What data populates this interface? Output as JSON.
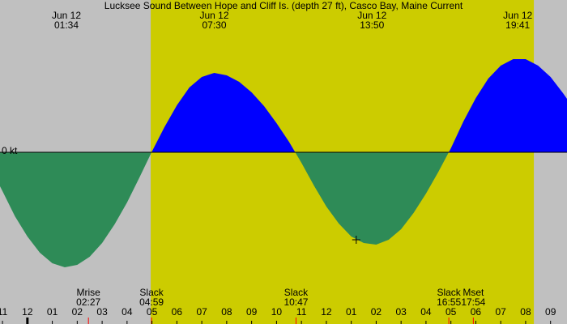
{
  "chart_data": {
    "type": "current",
    "title": "Lucksee Sound Between Hope and Cliff Is. (depth 27 ft), Casco Bay, Maine Current",
    "x": [
      -1.1,
      -1,
      -0.5,
      0,
      0.5,
      1,
      1.5,
      2,
      2.5,
      3,
      3.5,
      4,
      4.5,
      5,
      5.5,
      6,
      6.5,
      7,
      7.5,
      8,
      8.5,
      9,
      9.5,
      10,
      10.5,
      11,
      11.5,
      12,
      12.5,
      13,
      13.5,
      14,
      14.5,
      15,
      15.5,
      16,
      16.5,
      17,
      17.5,
      18,
      18.5,
      19,
      19.5,
      20,
      20.5,
      21,
      21.5,
      21.66
    ],
    "values": [
      -0.42,
      -0.48,
      -0.79,
      -1.04,
      -1.24,
      -1.37,
      -1.42,
      -1.39,
      -1.29,
      -1.12,
      -0.89,
      -0.62,
      -0.31,
      0.01,
      0.31,
      0.58,
      0.8,
      0.93,
      0.98,
      0.95,
      0.87,
      0.74,
      0.57,
      0.36,
      0.13,
      -0.13,
      -0.41,
      -0.67,
      -0.88,
      -1.04,
      -1.12,
      -1.14,
      -1.08,
      -0.95,
      -0.75,
      -0.51,
      -0.24,
      0.05,
      0.38,
      0.67,
      0.91,
      1.07,
      1.15,
      1.15,
      1.07,
      0.93,
      0.73,
      0.66
    ],
    "xlim": [
      -1.1,
      21.66
    ],
    "ylim": [
      -2.12,
      1.88
    ],
    "yticks": [
      {
        "value": 0,
        "label": "0 kt"
      }
    ],
    "xticks": [
      {
        "value": -1,
        "label": "11"
      },
      {
        "value": 0,
        "label": "12"
      },
      {
        "value": 1,
        "label": "01"
      },
      {
        "value": 2,
        "label": "02"
      },
      {
        "value": 3,
        "label": "03"
      },
      {
        "value": 4,
        "label": "04"
      },
      {
        "value": 5,
        "label": "05"
      },
      {
        "value": 6,
        "label": "06"
      },
      {
        "value": 7,
        "label": "07"
      },
      {
        "value": 8,
        "label": "08"
      },
      {
        "value": 9,
        "label": "09"
      },
      {
        "value": 10,
        "label": "10"
      },
      {
        "value": 11,
        "label": "11"
      },
      {
        "value": 12,
        "label": "12"
      },
      {
        "value": 13,
        "label": "01"
      },
      {
        "value": 14,
        "label": "02"
      },
      {
        "value": 15,
        "label": "03"
      },
      {
        "value": 16,
        "label": "04"
      },
      {
        "value": 17,
        "label": "05"
      },
      {
        "value": 18,
        "label": "06"
      },
      {
        "value": 19,
        "label": "07"
      },
      {
        "value": 20,
        "label": "08"
      },
      {
        "value": 21,
        "label": "09"
      }
    ],
    "daylight": [
      4.95,
      20.33
    ],
    "background_color": "#c0c0c0",
    "daylight_color": "#cccc00",
    "flood_color": "#0000ff",
    "ebb_color": "#2e8b57",
    "top_events": [
      {
        "date": "Jun 12",
        "time": "01:34",
        "x": 1.567
      },
      {
        "date": "Jun 12",
        "time": "07:30",
        "x": 7.5
      },
      {
        "date": "Jun 12",
        "time": "13:50",
        "x": 13.833
      },
      {
        "date": "Jun 12",
        "time": "19:41",
        "x": 19.683
      }
    ],
    "bottom_events": [
      {
        "label": "Mrise",
        "time": "02:27",
        "x": 2.45
      },
      {
        "label": "Slack",
        "time": "04:59",
        "x": 4.983
      },
      {
        "label": "Slack",
        "time": "10:47",
        "x": 10.783
      },
      {
        "label": "Slack",
        "time": "16:55",
        "x": 16.917
      },
      {
        "label": "Mset",
        "time": "17:54",
        "x": 17.9
      }
    ],
    "now": {
      "x": 13.2,
      "value": -1.08
    }
  }
}
